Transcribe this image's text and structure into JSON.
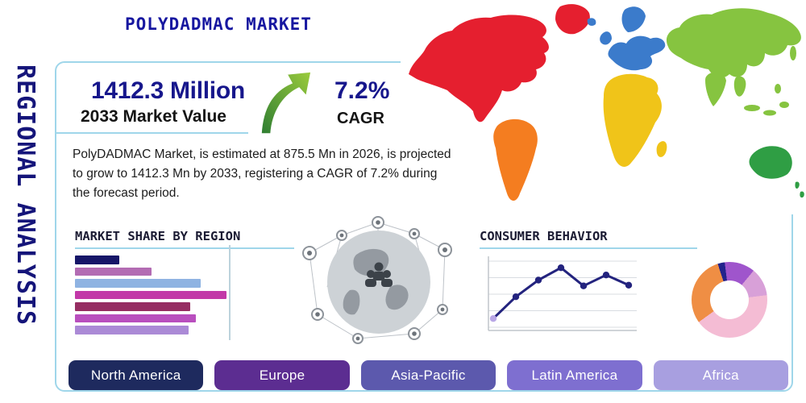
{
  "title": "POLYDADMAC MARKET",
  "side_label": "REGIONAL ANALYSIS",
  "stats": {
    "market_value": "1412.3 Million",
    "market_value_caption": "2033 Market Value",
    "cagr_value": "7.2%",
    "cagr_caption": "CAGR",
    "description": "PolyDADMAC Market, is estimated at 875.5 Mn in 2026, is projected to grow to 1412.3 Mn by 2033, registering a CAGR of 7.2% during the forecast period."
  },
  "chart_data": [
    {
      "type": "bar",
      "orientation": "horizontal",
      "title": "MARKET SHARE BY REGION",
      "categories": [
        "",
        "",
        "",
        "",
        "",
        "",
        ""
      ],
      "values": [
        29,
        50,
        82,
        99,
        75,
        79,
        74
      ],
      "unit": "relative share, no axis labels shown",
      "colors": [
        "#161668",
        "#b36cb3",
        "#8fb3e2",
        "#c238a8",
        "#962e62",
        "#b94fbe",
        "#ab8ad6"
      ],
      "grid": "single vertical gridline at right"
    },
    {
      "type": "line",
      "title": "CONSUMER BEHAVIOR",
      "x": [
        1,
        2,
        3,
        4,
        5,
        6,
        7
      ],
      "values": [
        12,
        42,
        65,
        82,
        57,
        72,
        58
      ],
      "color": "#23237e",
      "first_marker_color": "#b9a7e6",
      "grid": "horizontal gridlines, no tick labels"
    },
    {
      "type": "pie",
      "title": "",
      "donut": true,
      "start_angle_deg": -18,
      "slices": [
        {
          "label": "",
          "value": 3,
          "color": "#23238c"
        },
        {
          "label": "",
          "value": 13,
          "color": "#9f55cc"
        },
        {
          "label": "",
          "value": 12,
          "color": "#d8a0d8"
        },
        {
          "label": "",
          "value": 42,
          "color": "#f4bcd4"
        },
        {
          "label": "",
          "value": 30,
          "color": "#ef8e44"
        }
      ]
    }
  ],
  "regions_buttons": [
    {
      "label": "North America",
      "color": "#1e2a5e"
    },
    {
      "label": "Europe",
      "color": "#5c2d91"
    },
    {
      "label": "Asia-Pacific",
      "color": "#5c59ad"
    },
    {
      "label": "Latin America",
      "color": "#7e6fd0"
    },
    {
      "label": "Africa",
      "color": "#a89fe0"
    }
  ],
  "map": {
    "regions": {
      "north_america": {
        "label": "North America",
        "color": "#e51f2f"
      },
      "greenland": {
        "label": "Greenland",
        "color": "#e51f2f"
      },
      "south_america": {
        "label": "South America",
        "color": "#f47d20"
      },
      "europe": {
        "label": "Europe",
        "color": "#3b7bcb"
      },
      "africa": {
        "label": "Africa",
        "color": "#f0c419"
      },
      "asia": {
        "label": "Asia",
        "color": "#86c440"
      },
      "australia": {
        "label": "Australia / Oceania",
        "color": "#2f9e44"
      }
    }
  },
  "icons": {
    "growth_arrow": "curved-up-right-green-arrow",
    "globe_network": "grey-connected-globe-graphic"
  },
  "colors": {
    "frame_accent": "#9fd6ea",
    "navy": "#17178c"
  }
}
